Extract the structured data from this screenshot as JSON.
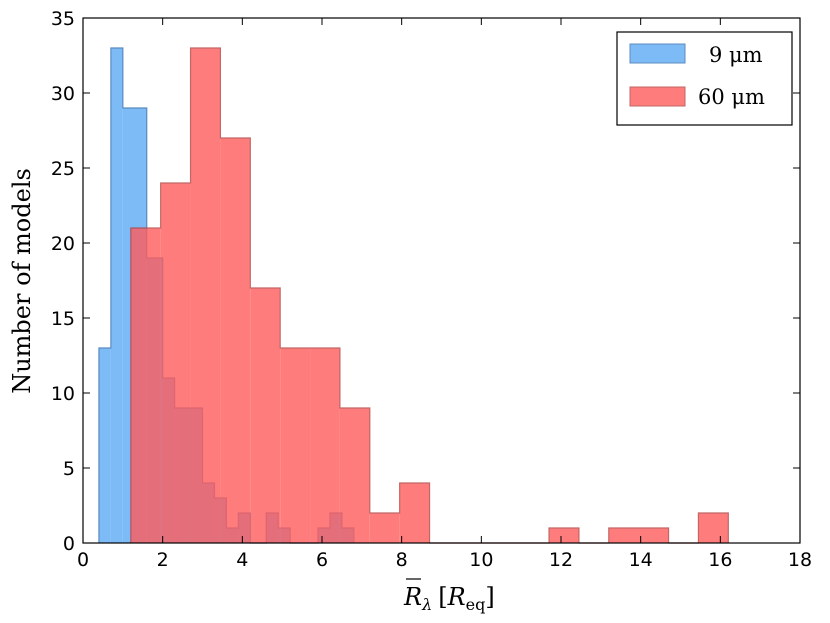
{
  "chart_data": {
    "type": "histogram",
    "title": "",
    "xlabel": "R̄λ [Req]",
    "xlabel_main": "R",
    "xlabel_sub": "λ",
    "xlabel_unit_main": "R",
    "xlabel_unit_sub": "eq",
    "ylabel": "Number of models",
    "xlim": [
      0,
      18
    ],
    "ylim": [
      0,
      35
    ],
    "xticks": [
      "0",
      "2",
      "4",
      "6",
      "8",
      "10",
      "12",
      "14",
      "16",
      "18"
    ],
    "yticks": [
      "0",
      "5",
      "10",
      "15",
      "20",
      "25",
      "30",
      "35"
    ],
    "legend_position": "top-right",
    "series": [
      {
        "name": "9 μm",
        "color": "#6eb4f6",
        "edge_color": "#4a7fb8",
        "bins": [
          {
            "x0": 0.4,
            "x1": 0.7,
            "count": 13
          },
          {
            "x0": 0.7,
            "x1": 1.0,
            "count": 33
          },
          {
            "x0": 1.0,
            "x1": 1.6,
            "count": 29
          },
          {
            "x0": 1.6,
            "x1": 2.0,
            "count": 19
          },
          {
            "x0": 2.0,
            "x1": 2.3,
            "count": 11
          },
          {
            "x0": 2.3,
            "x1": 3.0,
            "count": 9
          },
          {
            "x0": 3.0,
            "x1": 3.3,
            "count": 4
          },
          {
            "x0": 3.3,
            "x1": 3.6,
            "count": 3
          },
          {
            "x0": 3.6,
            "x1": 3.9,
            "count": 1
          },
          {
            "x0": 3.9,
            "x1": 4.2,
            "count": 2
          },
          {
            "x0": 4.2,
            "x1": 4.6,
            "count": 0
          },
          {
            "x0": 4.6,
            "x1": 4.9,
            "count": 2
          },
          {
            "x0": 4.9,
            "x1": 5.2,
            "count": 1
          },
          {
            "x0": 5.2,
            "x1": 5.9,
            "count": 0
          },
          {
            "x0": 5.9,
            "x1": 6.2,
            "count": 1
          },
          {
            "x0": 6.2,
            "x1": 6.5,
            "count": 2
          },
          {
            "x0": 6.5,
            "x1": 6.8,
            "count": 1
          }
        ]
      },
      {
        "name": "60 μm",
        "color": "#ff5c5c",
        "edge_color": "#b34040",
        "bins": [
          {
            "x0": 1.2,
            "x1": 1.95,
            "count": 21
          },
          {
            "x0": 1.95,
            "x1": 2.7,
            "count": 24
          },
          {
            "x0": 2.7,
            "x1": 3.45,
            "count": 33
          },
          {
            "x0": 3.45,
            "x1": 4.2,
            "count": 27
          },
          {
            "x0": 4.2,
            "x1": 4.95,
            "count": 17
          },
          {
            "x0": 4.95,
            "x1": 5.7,
            "count": 13
          },
          {
            "x0": 5.7,
            "x1": 6.45,
            "count": 13
          },
          {
            "x0": 6.45,
            "x1": 7.2,
            "count": 9
          },
          {
            "x0": 7.2,
            "x1": 7.95,
            "count": 2
          },
          {
            "x0": 7.95,
            "x1": 8.7,
            "count": 4
          },
          {
            "x0": 8.7,
            "x1": 11.7,
            "count": 0
          },
          {
            "x0": 11.7,
            "x1": 12.45,
            "count": 1
          },
          {
            "x0": 12.45,
            "x1": 13.2,
            "count": 0
          },
          {
            "x0": 13.2,
            "x1": 14.7,
            "count": 1
          },
          {
            "x0": 14.7,
            "x1": 15.45,
            "count": 0
          },
          {
            "x0": 15.45,
            "x1": 16.2,
            "count": 2
          }
        ]
      }
    ]
  }
}
